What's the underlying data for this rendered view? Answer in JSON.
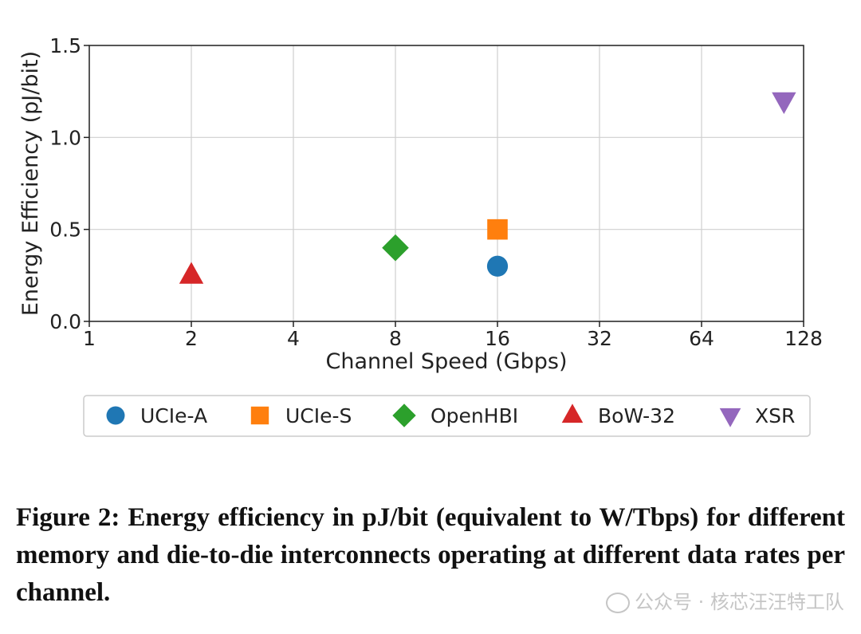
{
  "chart_data": {
    "type": "scatter",
    "title": "",
    "xlabel": "Channel Speed (Gbps)",
    "ylabel": "Energy Efficiency (pJ/bit)",
    "xscale": "log2",
    "xlim": [
      1,
      128
    ],
    "ylim": [
      0.0,
      1.5
    ],
    "xticks": [
      1,
      2,
      4,
      8,
      16,
      32,
      64,
      128
    ],
    "xtick_labels": [
      "1",
      "2",
      "4",
      "8",
      "16",
      "32",
      "64",
      "128"
    ],
    "yticks": [
      0.0,
      0.5,
      1.0,
      1.5
    ],
    "ytick_labels": [
      "0.0",
      "0.5",
      "1.0",
      "1.5"
    ],
    "grid": true,
    "legend_position": "bottom",
    "series": [
      {
        "name": "UCIe-A",
        "x": [
          16
        ],
        "y": [
          0.3
        ],
        "marker": "circle",
        "color": "#1f77b4"
      },
      {
        "name": "UCIe-S",
        "x": [
          16
        ],
        "y": [
          0.5
        ],
        "marker": "square",
        "color": "#ff7f0e"
      },
      {
        "name": "OpenHBI",
        "x": [
          8
        ],
        "y": [
          0.4
        ],
        "marker": "diamond",
        "color": "#2ca02c"
      },
      {
        "name": "BoW-32",
        "x": [
          2
        ],
        "y": [
          0.25
        ],
        "marker": "triangle-up",
        "color": "#d62728"
      },
      {
        "name": "XSR",
        "x": [
          112
        ],
        "y": [
          1.2
        ],
        "marker": "triangle-down",
        "color": "#9467bd"
      }
    ]
  },
  "caption": "Figure 2: Energy efficiency in pJ/bit (equivalent to W/Tbps) for different memory and die-to-die interconnects operating at different data rates per channel.",
  "watermark": "公众号 · 核芯汪汪特工队"
}
